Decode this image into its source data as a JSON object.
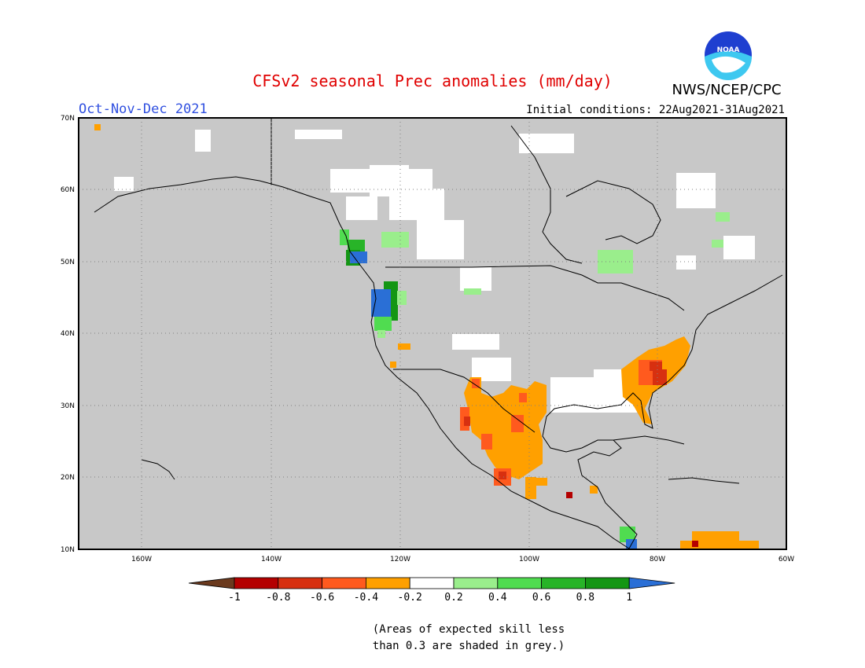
{
  "title": "CFSv2 seasonal Prec anomalies (mm/day)",
  "season": "Oct-Nov-Dec 2021",
  "initial_conditions": "Initial conditions: 22Aug2021-31Aug2021",
  "agency": "NWS/NCEP/CPC",
  "logo_text": "NOAA",
  "footnote": {
    "line1": "(Areas of expected skill less",
    "line2": "than 0.3 are shaded in grey.)"
  },
  "lat_labels": [
    "70N",
    "60N",
    "50N",
    "40N",
    "30N",
    "20N",
    "10N"
  ],
  "lon_labels": [
    "160W",
    "140W",
    "120W",
    "100W",
    "80W",
    "60W"
  ],
  "colorbar": {
    "tick_labels": [
      "-1",
      "-0.8",
      "-0.6",
      "-0.4",
      "-0.2",
      "0.2",
      "0.4",
      "0.6",
      "0.8",
      "1"
    ],
    "colors": [
      "#6b3a1e",
      "#b40000",
      "#d73010",
      "#ff5a1e",
      "#ffa000",
      "#ffffff",
      "#9aee8c",
      "#50dc50",
      "#28b428",
      "#149614",
      "#2a6fd6"
    ]
  },
  "colors": {
    "title": "#e00000",
    "season": "#3050e0",
    "mask_grey": "#c8c8c8",
    "land_border": "#000000"
  }
}
